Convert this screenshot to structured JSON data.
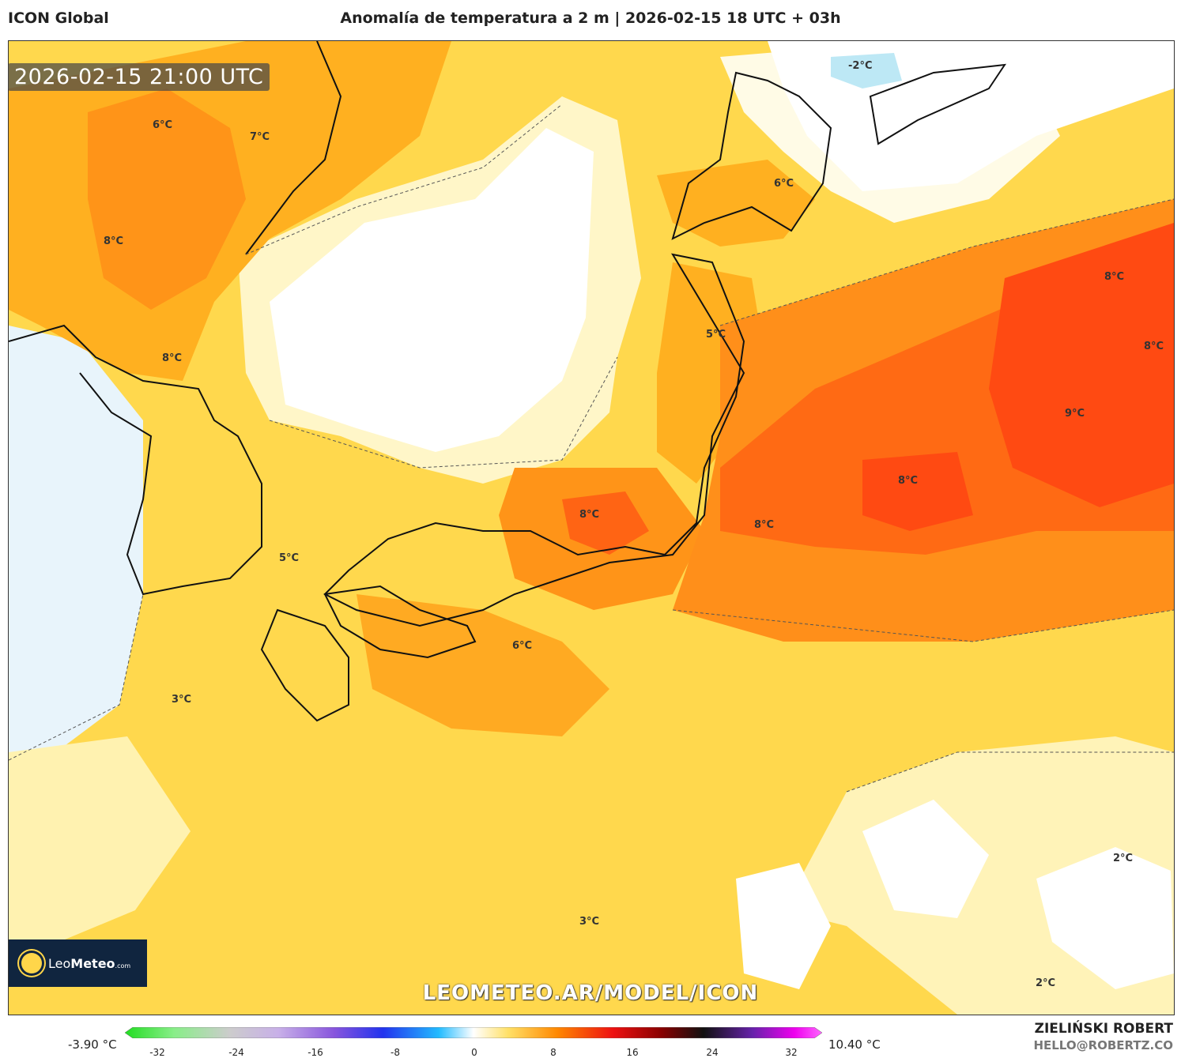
{
  "header": {
    "model": "ICON Global",
    "title": "Anomalía de temperatura a 2 m | 2026-02-15 18 UTC + 03h"
  },
  "map": {
    "valid_time": "2026-02-15 21:00 UTC",
    "watermark": "LEOMETEO.AR/MODEL/ICON",
    "contour_labels": [
      "-2°C",
      "6°C",
      "7°C",
      "6°C",
      "8°C",
      "8°C",
      "8°C",
      "5°C",
      "8°C",
      "9°C",
      "8°C",
      "8°C",
      "8°C",
      "5°C",
      "6°C",
      "3°C",
      "2°C",
      "3°C",
      "2°C"
    ]
  },
  "logo": {
    "name_a": "Leo",
    "name_b": "Meteo",
    "suffix": ".com"
  },
  "colorbar": {
    "min_label": "-3.90 °C",
    "max_label": "10.40 °C",
    "ticks": [
      "-32",
      "-24",
      "-16",
      "-8",
      "0",
      "8",
      "16",
      "24",
      "32"
    ],
    "colors": [
      "#22dd22",
      "#88ee88",
      "#cccccc",
      "#c8b0e8",
      "#8855dd",
      "#2233ee",
      "#22bbff",
      "#ffffff",
      "#ffe066",
      "#ff8800",
      "#ee1111",
      "#880000",
      "#111111",
      "#6622aa",
      "#ee00ee",
      "#ff66ff"
    ]
  },
  "author": {
    "name": "ZIELIŃSKI ROBERT",
    "url": "HELLO@ROBERTZ.CO"
  }
}
